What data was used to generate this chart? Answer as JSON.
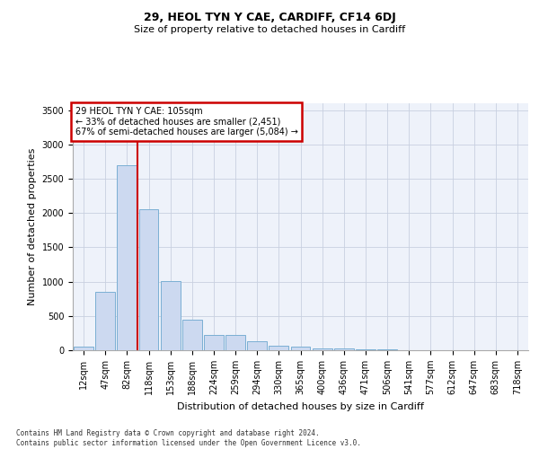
{
  "title_line1": "29, HEOL TYN Y CAE, CARDIFF, CF14 6DJ",
  "title_line2": "Size of property relative to detached houses in Cardiff",
  "xlabel": "Distribution of detached houses by size in Cardiff",
  "ylabel": "Number of detached properties",
  "bar_labels": [
    "12sqm",
    "47sqm",
    "82sqm",
    "118sqm",
    "153sqm",
    "188sqm",
    "224sqm",
    "259sqm",
    "294sqm",
    "330sqm",
    "365sqm",
    "400sqm",
    "436sqm",
    "471sqm",
    "506sqm",
    "541sqm",
    "577sqm",
    "612sqm",
    "647sqm",
    "683sqm",
    "718sqm"
  ],
  "bar_values": [
    58,
    845,
    2700,
    2055,
    1005,
    450,
    228,
    228,
    130,
    60,
    50,
    32,
    20,
    18,
    8,
    0,
    0,
    0,
    0,
    0,
    0
  ],
  "bar_color": "#ccd9f0",
  "bar_edge_color": "#7aafd4",
  "grid_color": "#c8d0e0",
  "vline_color": "#cc0000",
  "vline_pos": 2.5,
  "annotation_text": "29 HEOL TYN Y CAE: 105sqm\n← 33% of detached houses are smaller (2,451)\n67% of semi-detached houses are larger (5,084) →",
  "annotation_box_edgecolor": "#cc0000",
  "ylim": [
    0,
    3600
  ],
  "yticks": [
    0,
    500,
    1000,
    1500,
    2000,
    2500,
    3000,
    3500
  ],
  "footnote_line1": "Contains HM Land Registry data © Crown copyright and database right 2024.",
  "footnote_line2": "Contains public sector information licensed under the Open Government Licence v3.0.",
  "bg_color": "#eef2fa",
  "title1_fontsize": 9,
  "title2_fontsize": 8,
  "ylabel_fontsize": 8,
  "xlabel_fontsize": 8,
  "tick_fontsize": 7,
  "annot_fontsize": 7
}
